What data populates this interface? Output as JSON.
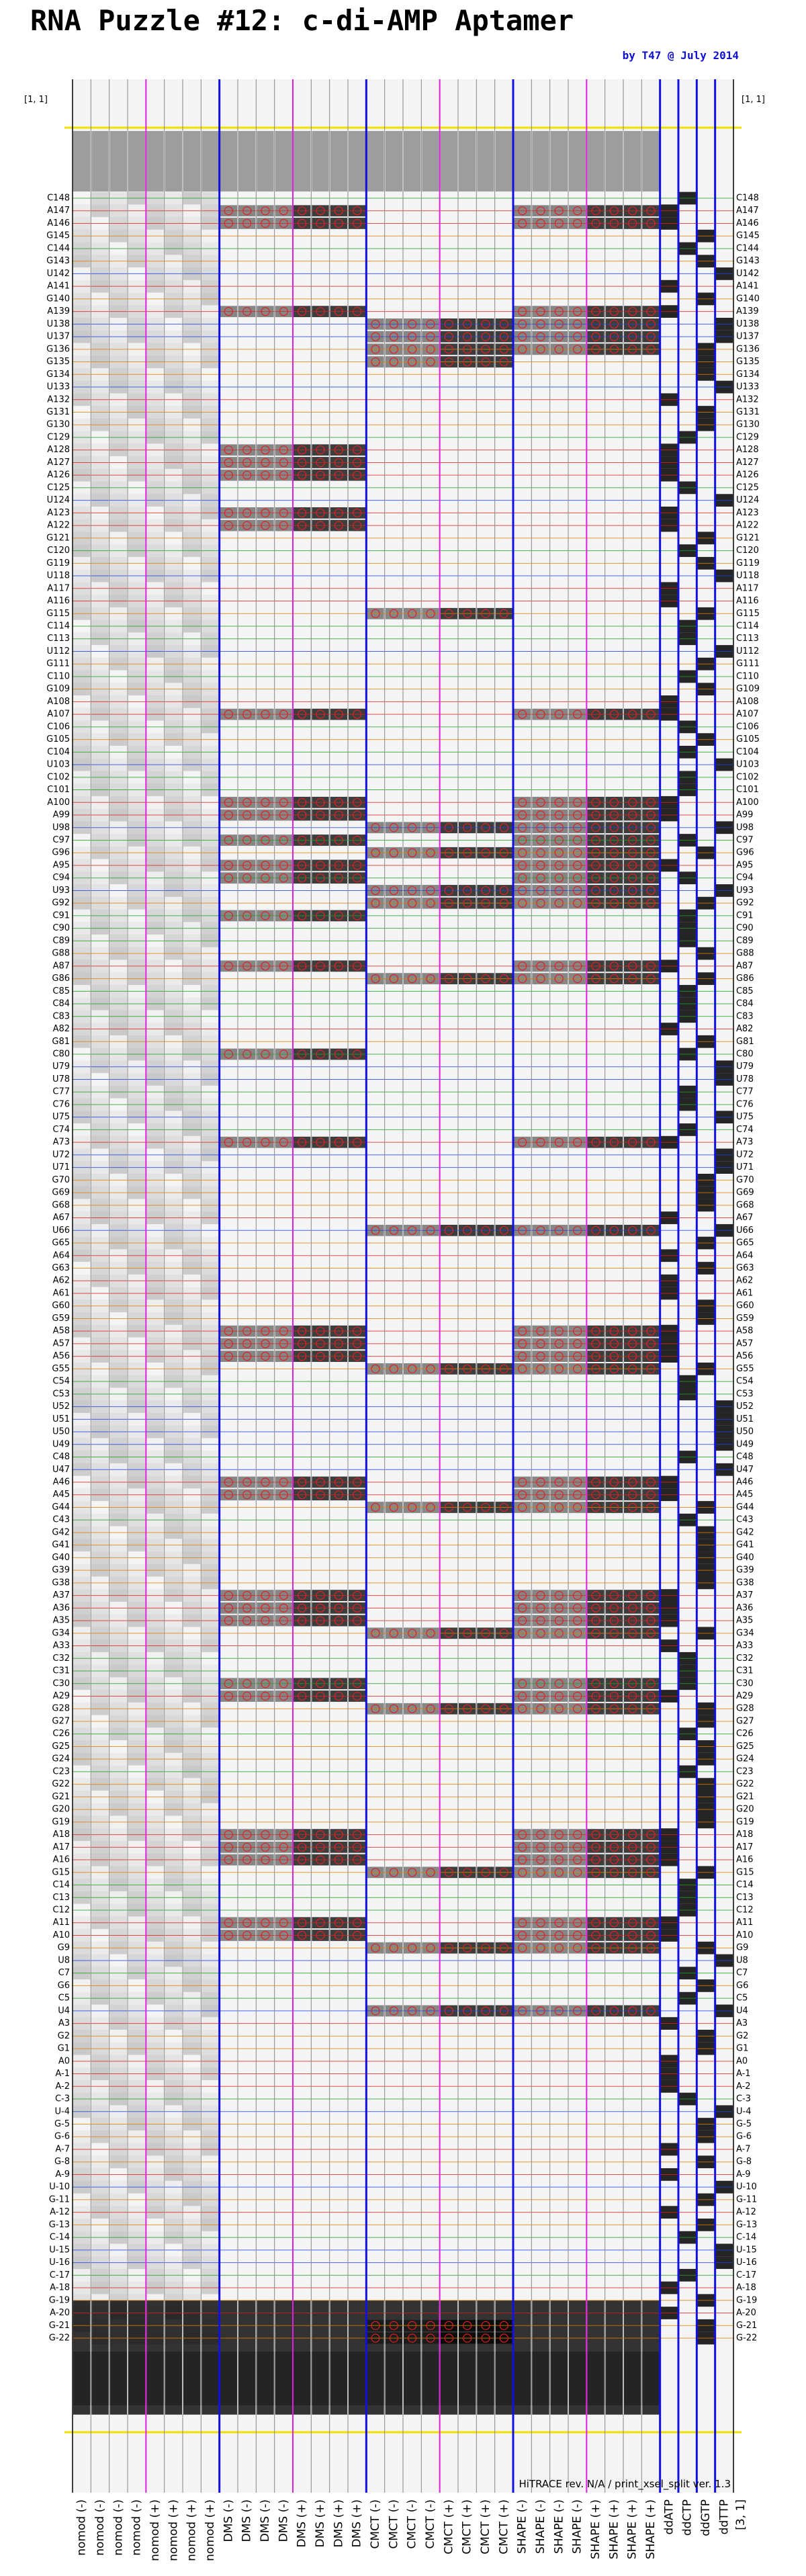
{
  "header": {
    "title": "RNA Puzzle #12: c-di-AMP Aptamer",
    "byline": "by T47 @ July 2014"
  },
  "corner_top": "[1, 1]",
  "corner_bottom": "[3, 1]",
  "footer": "HiTRACE rev. N/A / print_xsel_split ver. 1.3",
  "base_colors": {
    "A": "#e02020",
    "C": "#20a020",
    "G": "#e08000",
    "U": "#2040e0"
  },
  "rows": [
    "C148",
    "A147",
    "A146",
    "G145",
    "C144",
    "G143",
    "U142",
    "A141",
    "G140",
    "A139",
    "U138",
    "U137",
    "G136",
    "G135",
    "G134",
    "U133",
    "A132",
    "G131",
    "G130",
    "C129",
    "A128",
    "A127",
    "A126",
    "C125",
    "U124",
    "A123",
    "A122",
    "G121",
    "C120",
    "G119",
    "U118",
    "A117",
    "A116",
    "G115",
    "C114",
    "C113",
    "U112",
    "G111",
    "C110",
    "G109",
    "A108",
    "A107",
    "C106",
    "G105",
    "C104",
    "U103",
    "C102",
    "C101",
    "A100",
    "A99",
    "U98",
    "C97",
    "G96",
    "A95",
    "C94",
    "U93",
    "G92",
    "C91",
    "C90",
    "C89",
    "G88",
    "A87",
    "G86",
    "C85",
    "C84",
    "C83",
    "A82",
    "G81",
    "C80",
    "U79",
    "U78",
    "C77",
    "C76",
    "U75",
    "C74",
    "A73",
    "U72",
    "U71",
    "G70",
    "G69",
    "G68",
    "A67",
    "U66",
    "G65",
    "A64",
    "G63",
    "A62",
    "A61",
    "G60",
    "G59",
    "A58",
    "A57",
    "A56",
    "G55",
    "C54",
    "C53",
    "U52",
    "U51",
    "U50",
    "U49",
    "C48",
    "U47",
    "A46",
    "A45",
    "G44",
    "C43",
    "G42",
    "G41",
    "G40",
    "G39",
    "G38",
    "A37",
    "A36",
    "A35",
    "G34",
    "A33",
    "C32",
    "C31",
    "C30",
    "A29",
    "G28",
    "G27",
    "C26",
    "G25",
    "G24",
    "C23",
    "G22",
    "G21",
    "G20",
    "G19",
    "A18",
    "A17",
    "A16",
    "G15",
    "C14",
    "C13",
    "C12",
    "A11",
    "A10",
    "G9",
    "U8",
    "C7",
    "G6",
    "C5",
    "U4",
    "A3",
    "G2",
    "G1",
    "A0",
    "A-1",
    "A-2",
    "C-3",
    "U-4",
    "G-5",
    "G-6",
    "A-7",
    "G-8",
    "A-9",
    "U-10",
    "G-11",
    "A-12",
    "G-13",
    "C-14",
    "U-15",
    "U-16",
    "C-17",
    "A-18",
    "G-19",
    "A-20",
    "G-21",
    "G-22"
  ],
  "lanes": [
    "nomod (-)",
    "nomod (-)",
    "nomod (-)",
    "nomod (-)",
    "nomod (+)",
    "nomod (+)",
    "nomod (+)",
    "nomod (+)",
    "DMS (-)",
    "DMS (-)",
    "DMS (-)",
    "DMS (-)",
    "DMS (+)",
    "DMS (+)",
    "DMS (+)",
    "DMS (+)",
    "CMCT (-)",
    "CMCT (-)",
    "CMCT (-)",
    "CMCT (-)",
    "CMCT (+)",
    "CMCT (+)",
    "CMCT (+)",
    "CMCT (+)",
    "SHAPE (-)",
    "SHAPE (-)",
    "SHAPE (-)",
    "SHAPE (-)",
    "SHAPE (+)",
    "SHAPE (+)",
    "SHAPE (+)",
    "SHAPE (+)",
    "ddATP",
    "ddCTP",
    "ddGTP",
    "ddTTP"
  ],
  "marks": {
    "DMS": [
      "A147",
      "A146",
      "A139",
      "A128",
      "A127",
      "A126",
      "A123",
      "A122",
      "A107",
      "A100",
      "A99",
      "C97",
      "A95",
      "C94",
      "C91",
      "A87",
      "C80",
      "A73",
      "A58",
      "A57",
      "A56",
      "A46",
      "A45",
      "A37",
      "A36",
      "A35",
      "C30",
      "A29",
      "A18",
      "A17",
      "A16",
      "A11",
      "A10"
    ],
    "CMCT": [
      "U138",
      "U137",
      "G136",
      "G135",
      "G115",
      "U98",
      "G96",
      "U93",
      "G92",
      "G86",
      "U66",
      "G55",
      "G44",
      "G34",
      "G28",
      "G15",
      "G9",
      "U4",
      "G-21",
      "G-22"
    ],
    "SHAPE": [
      "A147",
      "A146",
      "A139",
      "U138",
      "U137",
      "G136",
      "A107",
      "A100",
      "A99",
      "U98",
      "C97",
      "G96",
      "A95",
      "C94",
      "U93",
      "G92",
      "A87",
      "G86",
      "A73",
      "U66",
      "A58",
      "A57",
      "A56",
      "G55",
      "A46",
      "A45",
      "G44",
      "A37",
      "A36",
      "A35",
      "G34",
      "C30",
      "A29",
      "G28",
      "A18",
      "A17",
      "A16",
      "G15",
      "A11",
      "A10",
      "G9",
      "U4"
    ]
  }
}
